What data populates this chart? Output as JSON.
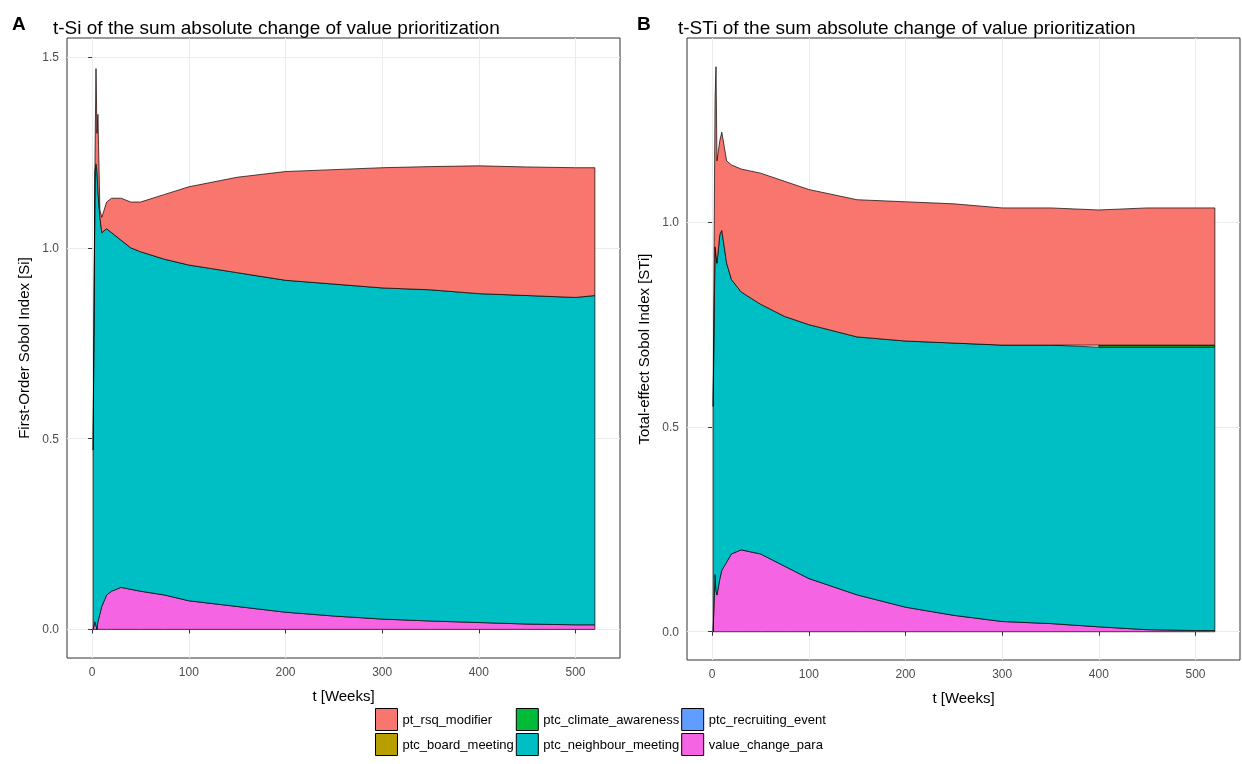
{
  "chart_data": [
    {
      "type": "area",
      "stacked": true,
      "title": "t-Si of the sum absolute change of value prioritization",
      "annotations": [
        "A"
      ],
      "xlabel": "t [Weeks]",
      "ylabel": "First-Order Sobol Index [Si]",
      "grid": true,
      "legend": false,
      "xlim": [
        -26,
        546
      ],
      "xticks": [
        0,
        100,
        200,
        300,
        400,
        500
      ],
      "ylim": [
        -0.075,
        1.55
      ],
      "yticks": [
        {
          "value": 0,
          "label": "0.0"
        },
        {
          "value": 0.5,
          "label": "0.5"
        },
        {
          "value": 1,
          "label": "1.0"
        },
        {
          "value": 1.5,
          "label": "1.5"
        }
      ],
      "x": [
        1,
        3,
        4,
        5,
        6,
        8,
        10,
        15,
        20,
        30,
        40,
        50,
        75,
        100,
        150,
        200,
        250,
        300,
        350,
        400,
        450,
        500,
        520
      ],
      "series": [
        {
          "color": "#f564e3",
          "values": [
            0,
            0.02,
            0.01,
            0,
            0.02,
            0.04,
            0.06,
            0.09,
            0.1,
            0.11,
            0.105,
            0.1,
            0.09,
            0.075,
            0.06,
            0.045,
            0.035,
            0.027,
            0.022,
            0.018,
            0.014,
            0.012,
            0.012
          ]
        },
        {
          "color": "#00bfc4",
          "values": [
            0.47,
            1.18,
            1.21,
            1.2,
            1.13,
            1.04,
            0.98,
            0.96,
            0.94,
            0.91,
            0.895,
            0.89,
            0.88,
            0.88,
            0.875,
            0.87,
            0.87,
            0.868,
            0.868,
            0.862,
            0.861,
            0.858,
            0.863
          ]
        },
        {
          "color": "#f8766d",
          "values": [
            0,
            0.05,
            0.25,
            0.1,
            0.2,
            0.02,
            0.04,
            0.07,
            0.09,
            0.11,
            0.12,
            0.13,
            0.17,
            0.205,
            0.25,
            0.285,
            0.3,
            0.315,
            0.323,
            0.335,
            0.337,
            0.34,
            0.335
          ]
        }
      ]
    },
    {
      "type": "area",
      "stacked": true,
      "title": "t-STi of the sum absolute change of value prioritization",
      "annotations": [
        "B"
      ],
      "xlabel": "t [Weeks]",
      "ylabel": "Total-effect Sobol Index [STi]",
      "grid": true,
      "legend": "bottom",
      "xlim": [
        -26,
        546
      ],
      "xticks": [
        0,
        100,
        200,
        300,
        400,
        500
      ],
      "ylim": [
        -0.069,
        1.45
      ],
      "yticks": [
        {
          "value": 0,
          "label": "0.0"
        },
        {
          "value": 0.5,
          "label": "0.5"
        },
        {
          "value": 1,
          "label": "1.0"
        }
      ],
      "x": [
        1,
        3,
        4,
        5,
        8,
        10,
        15,
        20,
        30,
        50,
        75,
        100,
        150,
        200,
        250,
        300,
        350,
        400,
        450,
        500,
        520
      ],
      "series": [
        {
          "name": "value_change_para",
          "color": "#f564e3",
          "values": [
            0,
            0.14,
            0.1,
            0.09,
            0.13,
            0.15,
            0.17,
            0.19,
            0.2,
            0.19,
            0.16,
            0.13,
            0.09,
            0.06,
            0.04,
            0.025,
            0.02,
            0.012,
            0.005,
            0.003,
            0.003
          ]
        },
        {
          "name": "ptc_recruiting_event",
          "color": "#619cff",
          "values": [
            null,
            null,
            null,
            null,
            null,
            null,
            null,
            null,
            null,
            null,
            null,
            null,
            null,
            null,
            null,
            null,
            null,
            null,
            null,
            null,
            null
          ]
        },
        {
          "name": "ptc_neighbour_meeting",
          "color": "#00bfc4",
          "values": [
            0.55,
            0.8,
            0.82,
            0.81,
            0.84,
            0.83,
            0.73,
            0.67,
            0.63,
            0.61,
            0.61,
            0.62,
            0.63,
            0.65,
            0.665,
            0.675,
            0.68,
            0.683,
            0.69,
            0.692,
            0.692
          ]
        },
        {
          "name": "ptc_climate_awareness",
          "color": "#00ba38",
          "values": [
            null,
            null,
            null,
            null,
            null,
            null,
            null,
            null,
            null,
            null,
            null,
            null,
            null,
            null,
            null,
            null,
            null,
            0.005,
            0.005,
            0.005,
            0.005
          ]
        },
        {
          "name": "ptc_board_meeting",
          "color": "#b79f00",
          "values": [
            null,
            null,
            null,
            null,
            null,
            null,
            null,
            null,
            null,
            null,
            null,
            null,
            null,
            null,
            null,
            null,
            null,
            null,
            null,
            null,
            null
          ]
        },
        {
          "name": "pt_rsq_modifier",
          "color": "#f8766d",
          "values": [
            0,
            0.36,
            0.46,
            0.25,
            0.23,
            0.24,
            0.25,
            0.28,
            0.3,
            0.32,
            0.33,
            0.33,
            0.335,
            0.34,
            0.34,
            0.335,
            0.335,
            0.33,
            0.335,
            0.335,
            0.335
          ]
        }
      ]
    }
  ]
}
